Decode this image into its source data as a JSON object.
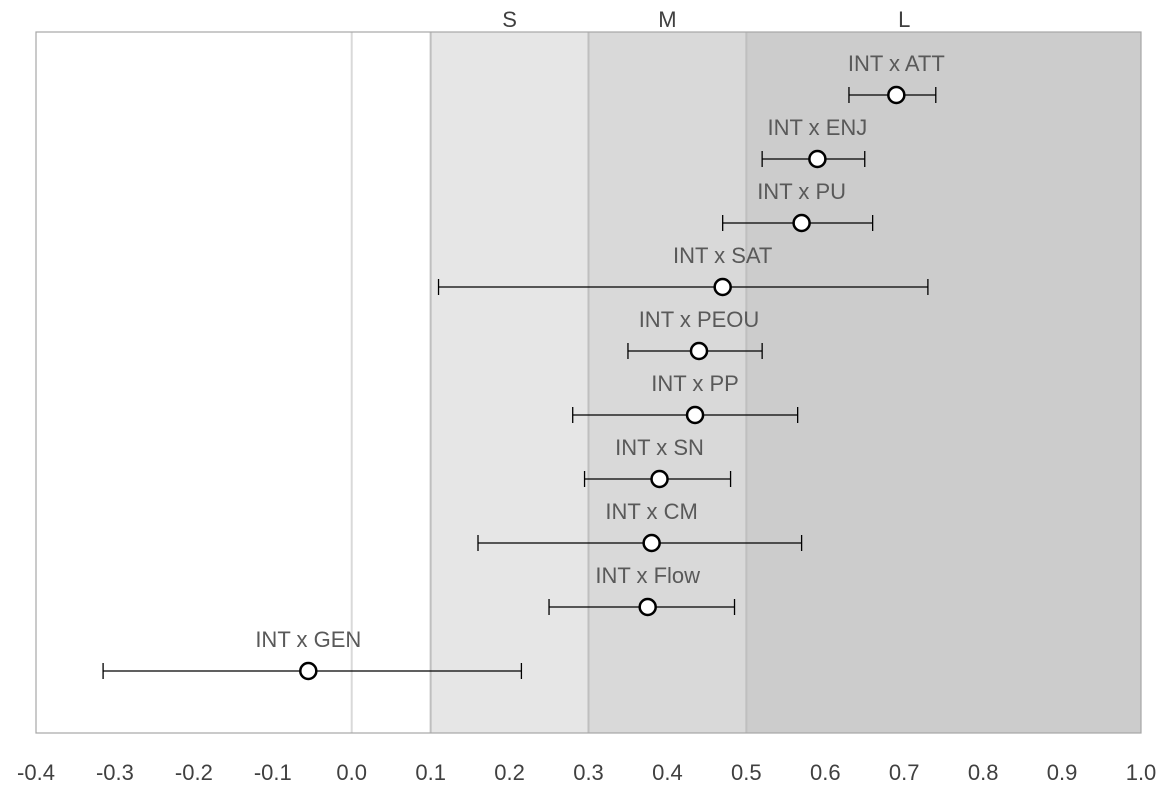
{
  "chart_data": {
    "type": "scatter",
    "subtype": "forest-plot",
    "title": "",
    "xlabel": "",
    "ylabel": "",
    "xlim": [
      -0.4,
      1.0
    ],
    "x_ticks": [
      "-0.4",
      "-0.3",
      "-0.2",
      "-0.1",
      "0.0",
      "0.1",
      "0.2",
      "0.3",
      "0.4",
      "0.5",
      "0.6",
      "0.7",
      "0.8",
      "0.9",
      "1.0"
    ],
    "effect_bands": [
      {
        "label": "S",
        "from": 0.1,
        "to": 0.3,
        "color": "#e6e6e6"
      },
      {
        "label": "M",
        "from": 0.3,
        "to": 0.5,
        "color": "#d9d9d9"
      },
      {
        "label": "L",
        "from": 0.5,
        "to": 1.0,
        "color": "#cccccc"
      }
    ],
    "reference_lines": [
      0.0,
      0.1,
      0.3,
      0.5
    ],
    "points": [
      {
        "label": "INT x ATT",
        "estimate": 0.69,
        "ci_low": 0.63,
        "ci_high": 0.74
      },
      {
        "label": "INT x ENJ",
        "estimate": 0.59,
        "ci_low": 0.52,
        "ci_high": 0.65
      },
      {
        "label": "INT x PU",
        "estimate": 0.57,
        "ci_low": 0.47,
        "ci_high": 0.66
      },
      {
        "label": "INT x SAT",
        "estimate": 0.47,
        "ci_low": 0.11,
        "ci_high": 0.73
      },
      {
        "label": "INT x PEOU",
        "estimate": 0.44,
        "ci_low": 0.35,
        "ci_high": 0.52
      },
      {
        "label": "INT x PP",
        "estimate": 0.435,
        "ci_low": 0.28,
        "ci_high": 0.565
      },
      {
        "label": "INT x SN",
        "estimate": 0.39,
        "ci_low": 0.295,
        "ci_high": 0.48
      },
      {
        "label": "INT x CM",
        "estimate": 0.38,
        "ci_low": 0.16,
        "ci_high": 0.57
      },
      {
        "label": "INT x Flow",
        "estimate": 0.375,
        "ci_low": 0.25,
        "ci_high": 0.485
      },
      {
        "label": "INT x GEN",
        "estimate": -0.055,
        "ci_low": -0.315,
        "ci_high": 0.215
      }
    ],
    "legend": "none",
    "grid": false
  }
}
